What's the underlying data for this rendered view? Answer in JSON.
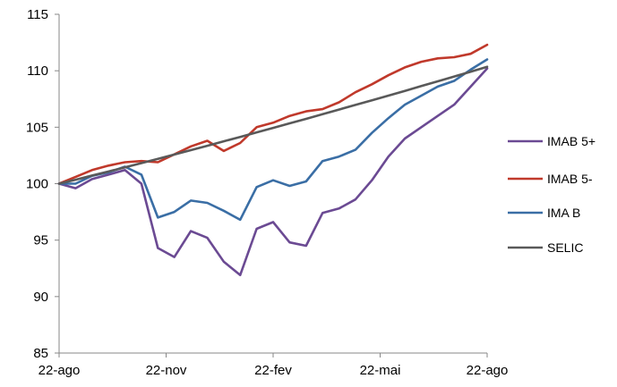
{
  "chart_data": {
    "type": "line",
    "title": "",
    "xlabel": "",
    "ylabel": "",
    "x_tick_labels": [
      "22-ago",
      "22-nov",
      "22-fev",
      "22-mai",
      "22-ago"
    ],
    "y_tick_labels": [
      "85",
      "90",
      "95",
      "100",
      "105",
      "110",
      "115"
    ],
    "ylim": [
      85,
      115
    ],
    "grid": false,
    "legend_position": "right",
    "x": [
      "22-ago",
      "5-set",
      "19-set",
      "3-out",
      "17-out",
      "31-out",
      "14-nov",
      "28-nov",
      "12-dez",
      "26-dez",
      "9-jan",
      "23-jan",
      "6-fev",
      "20-fev",
      "6-mar",
      "20-mar",
      "3-abr",
      "17-abr",
      "1-mai",
      "15-mai",
      "29-mai",
      "12-jun",
      "26-jun",
      "10-jul",
      "24-jul",
      "7-ago",
      "22-ago"
    ],
    "series": [
      {
        "name": "IMAB 5+",
        "color": "#6B4A93",
        "values": [
          100.0,
          99.6,
          100.4,
          100.8,
          101.2,
          100.0,
          94.3,
          93.5,
          95.8,
          95.2,
          93.1,
          91.9,
          96.0,
          96.6,
          94.8,
          94.5,
          97.4,
          97.8,
          98.6,
          100.3,
          102.4,
          104.0,
          105.0,
          106.0,
          107.0,
          108.6,
          110.2
        ]
      },
      {
        "name": "IMAB 5-",
        "color": "#C0392B",
        "values": [
          100.0,
          100.6,
          101.2,
          101.6,
          101.9,
          102.0,
          101.9,
          102.6,
          103.3,
          103.8,
          102.9,
          103.6,
          105.0,
          105.4,
          106.0,
          106.4,
          106.6,
          107.2,
          108.1,
          108.8,
          109.6,
          110.3,
          110.8,
          111.1,
          111.2,
          111.5,
          112.3
        ]
      },
      {
        "name": "IMA B",
        "color": "#3A6EA5",
        "values": [
          100.0,
          100.0,
          100.7,
          101.0,
          101.5,
          100.8,
          97.0,
          97.5,
          98.5,
          98.3,
          97.6,
          96.8,
          99.7,
          100.3,
          99.8,
          100.2,
          102.0,
          102.4,
          103.0,
          104.5,
          105.8,
          107.0,
          107.8,
          108.6,
          109.1,
          110.1,
          111.0
        ]
      },
      {
        "name": "SELIC",
        "color": "#595959",
        "values": [
          100.0,
          100.35,
          100.72,
          101.08,
          101.45,
          101.82,
          102.2,
          102.58,
          102.97,
          103.36,
          103.75,
          104.14,
          104.54,
          104.94,
          105.34,
          105.74,
          106.15,
          106.56,
          106.97,
          107.38,
          107.8,
          108.22,
          108.64,
          109.06,
          109.49,
          109.92,
          110.35
        ]
      }
    ]
  }
}
